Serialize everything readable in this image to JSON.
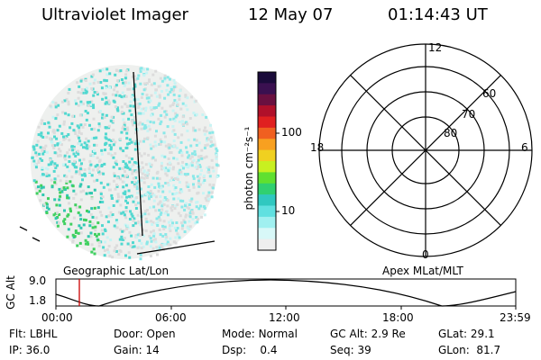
{
  "header": {
    "instrument": "Ultraviolet Imager",
    "date": "12 May 07",
    "time": "01:14:43 UT"
  },
  "colorbar": {
    "unit_label": "photon cm⁻²s⁻¹",
    "ticks": [
      "100",
      "10"
    ],
    "colors": [
      "#1a0b3a",
      "#3a1050",
      "#6a1040",
      "#b0102a",
      "#e02020",
      "#f06020",
      "#f8a020",
      "#f0d020",
      "#c8f020",
      "#60e030",
      "#30d070",
      "#30c8c0",
      "#60e0e0",
      "#a0f0f0",
      "#d8f8f8",
      "#eeeeee"
    ]
  },
  "polar": {
    "mlt_labels": {
      "top": "12",
      "left": "18",
      "right": "6",
      "bottom": "0"
    },
    "lat_labels": [
      "60",
      "70",
      "80"
    ]
  },
  "captions": {
    "left": "Geographic Lat/Lon",
    "right": "Apex MLat/MLT"
  },
  "altitude_plot": {
    "ylabel": "GC Alt",
    "yticks": [
      "9.0",
      "1.8"
    ],
    "xticks": [
      "00:00",
      "06:00",
      "12:00",
      "18:00",
      "23:59"
    ],
    "marker_color": "#cc0000"
  },
  "footer": {
    "row1": [
      {
        "key": "Flt:",
        "value": "LBHL"
      },
      {
        "key": "Door:",
        "value": "Open"
      },
      {
        "key": "Mode:",
        "value": "Normal"
      },
      {
        "key": "GC Alt:",
        "value": "2.9 Re"
      },
      {
        "key": "GLat:",
        "value": "29.1"
      }
    ],
    "row2": [
      {
        "key": "IP:",
        "value": "36.0"
      },
      {
        "key": "Gain:",
        "value": "14"
      },
      {
        "key": "Dsp:",
        "value": "0.4"
      },
      {
        "key": "Seq:",
        "value": "39"
      },
      {
        "key": "GLon:",
        "value": "81.7"
      }
    ]
  }
}
